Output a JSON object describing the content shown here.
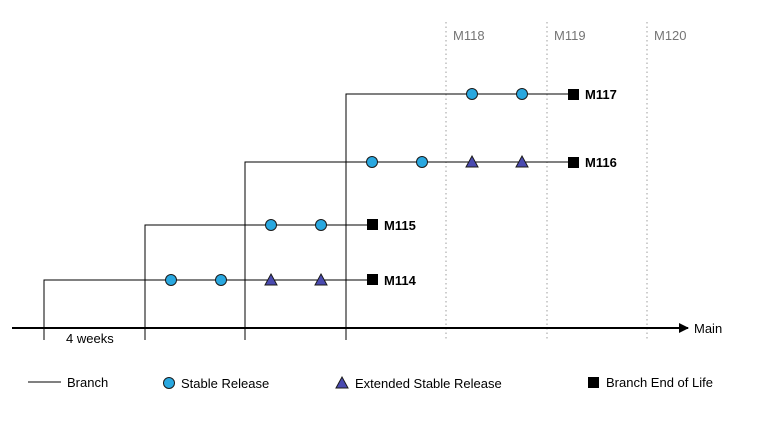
{
  "axis": {
    "main_label": "Main",
    "interval_label": "4 weeks"
  },
  "milestones": [
    "M118",
    "M119",
    "M120"
  ],
  "branches": [
    {
      "label": "M114",
      "stable_releases": 2,
      "extended_stable_releases": 2
    },
    {
      "label": "M115",
      "stable_releases": 2,
      "extended_stable_releases": 0
    },
    {
      "label": "M116",
      "stable_releases": 2,
      "extended_stable_releases": 2
    },
    {
      "label": "M117",
      "stable_releases": 2,
      "extended_stable_releases": 0
    }
  ],
  "legend": {
    "branch": "Branch",
    "stable_release": "Stable Release",
    "extended_stable_release": "Extended Stable Release",
    "branch_eol": "Branch End of Life"
  },
  "colors": {
    "stable_release": "#29a8e0",
    "extended_stable_release": "#4a4ab0",
    "eol": "#000000",
    "milestone_text": "#757575"
  }
}
